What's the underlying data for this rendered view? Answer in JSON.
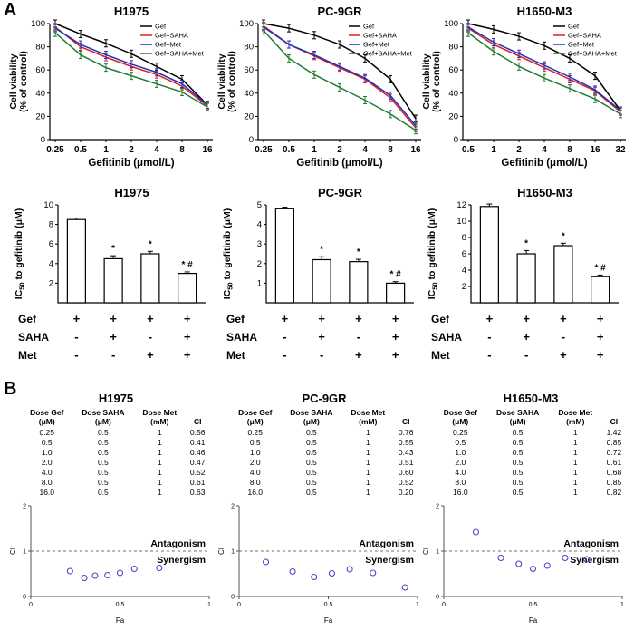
{
  "panels": {
    "a": "A",
    "b": "B"
  },
  "colors": {
    "gef": "#000000",
    "gef_saha": "#e02020",
    "gef_met": "#2233bb",
    "gef_saha_met": "#1e7d32",
    "scatter_point": "#4348c8"
  },
  "chart_data": [
    {
      "type": "line",
      "title": "H1975",
      "xlabel": "Gefitinib (μmol/L)",
      "ylabel": "Cell viability (% of control)",
      "categories": [
        "0.25",
        "0.5",
        "1",
        "2",
        "4",
        "8",
        "16"
      ],
      "ylim": [
        0,
        100
      ],
      "yticks": [
        0,
        20,
        40,
        60,
        80,
        100
      ],
      "series": [
        {
          "name": "Gef",
          "color": "#000000",
          "values": [
            100,
            91,
            83,
            74,
            63,
            52,
            30
          ]
        },
        {
          "name": "Gef+SAHA",
          "color": "#e02020",
          "values": [
            97,
            80,
            71,
            63,
            56,
            46,
            29
          ]
        },
        {
          "name": "Gef+Met",
          "color": "#2233bb",
          "values": [
            96,
            82,
            73,
            65,
            58,
            48,
            30
          ]
        },
        {
          "name": "Gef+SAHA+Met",
          "color": "#1e7d32",
          "values": [
            92,
            73,
            62,
            55,
            48,
            41,
            28
          ]
        }
      ]
    },
    {
      "type": "line",
      "title": "PC-9GR",
      "xlabel": "Gefitinib (μmol/L)",
      "ylabel": "Cell viability (% of control)",
      "categories": [
        "0.25",
        "0.5",
        "1",
        "2",
        "4",
        "8",
        "16"
      ],
      "ylim": [
        0,
        100
      ],
      "yticks": [
        0,
        20,
        40,
        60,
        80,
        100
      ],
      "series": [
        {
          "name": "Gef",
          "color": "#000000",
          "values": [
            100,
            96,
            90,
            82,
            70,
            52,
            18
          ]
        },
        {
          "name": "Gef+SAHA",
          "color": "#e02020",
          "values": [
            98,
            82,
            72,
            62,
            52,
            36,
            10
          ]
        },
        {
          "name": "Gef+Met",
          "color": "#2233bb",
          "values": [
            97,
            82,
            73,
            63,
            53,
            38,
            12
          ]
        },
        {
          "name": "Gef+SAHA+Met",
          "color": "#1e7d32",
          "values": [
            94,
            70,
            56,
            45,
            34,
            22,
            8
          ]
        }
      ]
    },
    {
      "type": "line",
      "title": "H1650-M3",
      "xlabel": "Gefitinib (μmol/L)",
      "ylabel": "Cell viability (% of control)",
      "categories": [
        "0.5",
        "1",
        "2",
        "4",
        "8",
        "16",
        "32"
      ],
      "ylim": [
        0,
        100
      ],
      "yticks": [
        0,
        20,
        40,
        60,
        80,
        100
      ],
      "series": [
        {
          "name": "Gef",
          "color": "#000000",
          "values": [
            100,
            95,
            89,
            81,
            70,
            55,
            25
          ]
        },
        {
          "name": "Gef+SAHA",
          "color": "#e02020",
          "values": [
            96,
            82,
            72,
            62,
            52,
            42,
            24
          ]
        },
        {
          "name": "Gef+Met",
          "color": "#2233bb",
          "values": [
            97,
            84,
            74,
            64,
            54,
            43,
            25
          ]
        },
        {
          "name": "Gef+SAHA+Met",
          "color": "#1e7d32",
          "values": [
            92,
            76,
            63,
            53,
            44,
            35,
            22
          ]
        }
      ]
    },
    {
      "type": "bar",
      "title": "H1975",
      "ylabel": "IC50 to gefitinib (μM)",
      "values": [
        8.5,
        4.5,
        5.0,
        3.0
      ],
      "errors": [
        0.15,
        0.3,
        0.25,
        0.15
      ],
      "annotations": [
        "",
        "*",
        "*",
        "* #"
      ],
      "ylim": [
        0,
        10
      ],
      "yticks": [
        2,
        4,
        6,
        8,
        10
      ],
      "sign_matrix": {
        "rows": [
          {
            "label": "Gef",
            "signs": [
              "+",
              "+",
              "+",
              "+"
            ]
          },
          {
            "label": "SAHA",
            "signs": [
              "-",
              "+",
              "-",
              "+"
            ]
          },
          {
            "label": "Met",
            "signs": [
              "-",
              "-",
              "+",
              "+"
            ]
          }
        ]
      }
    },
    {
      "type": "bar",
      "title": "PC-9GR",
      "ylabel": "IC50 to gefitinib (μM)",
      "values": [
        4.8,
        2.2,
        2.1,
        1.0
      ],
      "errors": [
        0.08,
        0.15,
        0.12,
        0.08
      ],
      "annotations": [
        "",
        "*",
        "*",
        "* #"
      ],
      "ylim": [
        0,
        5
      ],
      "yticks": [
        1,
        2,
        3,
        4,
        5
      ],
      "sign_matrix": {
        "rows": [
          {
            "label": "Gef",
            "signs": [
              "+",
              "+",
              "+",
              "+"
            ]
          },
          {
            "label": "SAHA",
            "signs": [
              "-",
              "+",
              "-",
              "+"
            ]
          },
          {
            "label": "Met",
            "signs": [
              "-",
              "-",
              "+",
              "+"
            ]
          }
        ]
      }
    },
    {
      "type": "bar",
      "title": "H1650-M3",
      "ylabel": "IC50 to gefitinib (μM)",
      "values": [
        11.8,
        6.0,
        7.0,
        3.2
      ],
      "errors": [
        0.3,
        0.4,
        0.3,
        0.2
      ],
      "annotations": [
        "",
        "*",
        "*",
        "* #"
      ],
      "ylim": [
        0,
        12
      ],
      "yticks": [
        2,
        4,
        6,
        8,
        10,
        12
      ],
      "sign_matrix": {
        "rows": [
          {
            "label": "Gef",
            "signs": [
              "+",
              "+",
              "+",
              "+"
            ]
          },
          {
            "label": "SAHA",
            "signs": [
              "-",
              "+",
              "-",
              "+"
            ]
          },
          {
            "label": "Met",
            "signs": [
              "-",
              "-",
              "+",
              "+"
            ]
          }
        ]
      }
    },
    {
      "type": "table",
      "title": "H1975",
      "headers": [
        "Dose Gef (μM)",
        "Dose SAHA (μM)",
        "Dose Met (mM)",
        "CI"
      ],
      "rows": [
        [
          "0.25",
          "0.5",
          "1",
          "0.56"
        ],
        [
          "0.5",
          "0.5",
          "1",
          "0.41"
        ],
        [
          "1.0",
          "0.5",
          "1",
          "0.46"
        ],
        [
          "2.0",
          "0.5",
          "1",
          "0.47"
        ],
        [
          "4.0",
          "0.5",
          "1",
          "0.52"
        ],
        [
          "8.0",
          "0.5",
          "1",
          "0.61"
        ],
        [
          "16.0",
          "0.5",
          "1",
          "0.63"
        ]
      ]
    },
    {
      "type": "table",
      "title": "PC-9GR",
      "headers": [
        "Dose Gef (μM)",
        "Dose SAHA (μM)",
        "Dose Met (mM)",
        "CI"
      ],
      "rows": [
        [
          "0.25",
          "0.5",
          "1",
          "0.76"
        ],
        [
          "0.5",
          "0.5",
          "1",
          "0.55"
        ],
        [
          "1.0",
          "0.5",
          "1",
          "0.43"
        ],
        [
          "2.0",
          "0.5",
          "1",
          "0.51"
        ],
        [
          "4.0",
          "0.5",
          "1",
          "0.60"
        ],
        [
          "8.0",
          "0.5",
          "1",
          "0.52"
        ],
        [
          "16.0",
          "0.5",
          "1",
          "0.20"
        ]
      ]
    },
    {
      "type": "table",
      "title": "H1650-M3",
      "headers": [
        "Dose Gef (μM)",
        "Dose SAHA (μM)",
        "Dose Met (mM)",
        "CI"
      ],
      "rows": [
        [
          "0.25",
          "0.5",
          "1",
          "1.42"
        ],
        [
          "0.5",
          "0.5",
          "1",
          "0.85"
        ],
        [
          "1.0",
          "0.5",
          "1",
          "0.72"
        ],
        [
          "2.0",
          "0.5",
          "1",
          "0.61"
        ],
        [
          "4.0",
          "0.5",
          "1",
          "0.68"
        ],
        [
          "8.0",
          "0.5",
          "1",
          "0.85"
        ],
        [
          "16.0",
          "0.5",
          "1",
          "0.82"
        ]
      ]
    },
    {
      "type": "scatter",
      "title": "H1975",
      "xlabel": "Fa",
      "ylabel": "CI",
      "xlim": [
        0,
        1
      ],
      "ylim": [
        0,
        2
      ],
      "xticks": [
        0,
        0.5,
        1
      ],
      "yticks": [
        0,
        1,
        2
      ],
      "hline": 1,
      "point_color": "#4348c8",
      "labels": {
        "above": "Antagonism",
        "below": "Synergism"
      },
      "x": [
        0.22,
        0.3,
        0.36,
        0.43,
        0.5,
        0.58,
        0.72
      ],
      "y": [
        0.56,
        0.41,
        0.46,
        0.47,
        0.52,
        0.61,
        0.63
      ]
    },
    {
      "type": "scatter",
      "title": "PC-9GR",
      "xlabel": "Fa",
      "ylabel": "CI",
      "xlim": [
        0,
        1
      ],
      "ylim": [
        0,
        2
      ],
      "xticks": [
        0,
        0.5,
        1
      ],
      "yticks": [
        0,
        1,
        2
      ],
      "hline": 1,
      "point_color": "#4348c8",
      "labels": {
        "above": "Antagonism",
        "below": "Synergism"
      },
      "x": [
        0.15,
        0.3,
        0.42,
        0.52,
        0.62,
        0.75,
        0.93
      ],
      "y": [
        0.76,
        0.55,
        0.43,
        0.51,
        0.6,
        0.52,
        0.2
      ]
    },
    {
      "type": "scatter",
      "title": "H1650-M3",
      "xlabel": "Fa",
      "ylabel": "CI",
      "xlim": [
        0,
        1
      ],
      "ylim": [
        0,
        2
      ],
      "xticks": [
        0,
        0.5,
        1
      ],
      "yticks": [
        0,
        1,
        2
      ],
      "hline": 1,
      "point_color": "#4348c8",
      "labels": {
        "above": "Antagonism",
        "below": "Synergism"
      },
      "x": [
        0.18,
        0.32,
        0.42,
        0.5,
        0.58,
        0.68,
        0.8
      ],
      "y": [
        1.42,
        0.85,
        0.72,
        0.61,
        0.68,
        0.85,
        0.82
      ]
    }
  ]
}
